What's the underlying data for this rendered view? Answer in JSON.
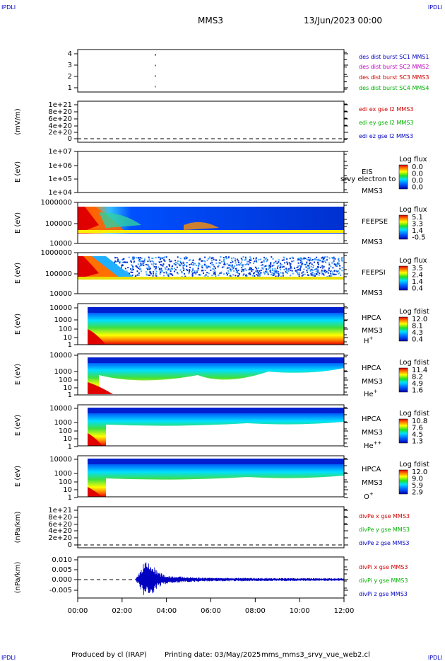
{
  "corners": {
    "tl": "IPDLI",
    "tr": "IPDLI",
    "bl": "IPDLI",
    "br": "IPDLI"
  },
  "header": {
    "spacecraft": "MMS3",
    "date": "13/Jun/2023 00:00"
  },
  "footer": {
    "produced": "Produced by cl (IRAP)",
    "printing": "Printing date: 03/May/2025",
    "file": "mms_mms3_srvy_vue_web2.cl"
  },
  "time_axis": {
    "ticks": [
      "00:00",
      "02:00",
      "04:00",
      "06:00",
      "08:00",
      "10:00",
      "12:00"
    ],
    "range_hours": [
      0,
      12
    ]
  },
  "panels": [
    {
      "id": "burst",
      "ylabel": "",
      "yticks": [
        "4",
        "3",
        "2",
        "1"
      ],
      "labels": [
        {
          "text": "des dist burst SC1 MMS1",
          "color": "#0000c0"
        },
        {
          "text": "des dist burst SC2 MMS2",
          "color": "#c000c0"
        },
        {
          "text": "des dist burst SC3 MMS3",
          "color": "#d00000"
        },
        {
          "text": "des dist burst SC4 MMS4",
          "color": "#00b000"
        }
      ]
    },
    {
      "id": "edi",
      "ylabel": "(mV/m)",
      "yticks": [
        "1e+21",
        "8e+20",
        "6e+20",
        "4e+20",
        "2e+20",
        "0"
      ],
      "labels": [
        {
          "text": "edi ex gse l2 MMS3",
          "color": "#d00000"
        },
        {
          "text": "edi ey gse l2 MMS3",
          "color": "#00b000"
        },
        {
          "text": "edi ez gse l2 MMS3",
          "color": "#0000c0"
        }
      ]
    },
    {
      "id": "eis",
      "ylabel": "E (eV)",
      "yticks": [
        "1e+07",
        "1e+06",
        "1e+05",
        "1e+04"
      ],
      "labels": [
        {
          "text": "EIS",
          "color": "#000"
        },
        {
          "text": "MMS3",
          "color": "#000"
        }
      ],
      "overlay": "srvy electron to",
      "colorbar": {
        "title": "Log flux",
        "ticks": [
          "0.0",
          "0.0",
          "0.0",
          "0.0"
        ]
      }
    },
    {
      "id": "feepse",
      "ylabel": "E (eV)",
      "yticks": [
        "1000000",
        "100000",
        "10000"
      ],
      "labels": [
        {
          "text": "FEEPSE",
          "color": "#000"
        },
        {
          "text": "MMS3",
          "color": "#000"
        }
      ],
      "colorbar": {
        "title": "Log flux",
        "ticks": [
          "5.1",
          "3.3",
          "1.4",
          "-0.5"
        ]
      }
    },
    {
      "id": "feepsi",
      "ylabel": "E (eV)",
      "yticks": [
        "1000000",
        "100000",
        "10000"
      ],
      "labels": [
        {
          "text": "FEEPSI",
          "color": "#000"
        },
        {
          "text": "MMS3",
          "color": "#000"
        }
      ],
      "colorbar": {
        "title": "Log flux",
        "ticks": [
          "3.5",
          "2.4",
          "1.4",
          "0.4"
        ]
      }
    },
    {
      "id": "hpca_h",
      "ylabel": "E (eV)",
      "yticks": [
        "10000",
        "1000",
        "100",
        "10",
        "1"
      ],
      "labels": [
        {
          "text": "HPCA",
          "color": "#000"
        },
        {
          "text": "MMS3",
          "color": "#000"
        }
      ],
      "species": "H",
      "charge": "+",
      "colorbar": {
        "title": "Log fdist",
        "ticks": [
          "12.0",
          "8.1",
          "4.3",
          "0.4"
        ]
      }
    },
    {
      "id": "hpca_he",
      "ylabel": "E (eV)",
      "yticks": [
        "10000",
        "1000",
        "100",
        "10",
        "1"
      ],
      "labels": [
        {
          "text": "HPCA",
          "color": "#000"
        },
        {
          "text": "MMS3",
          "color": "#000"
        }
      ],
      "species": "He",
      "charge": "+",
      "colorbar": {
        "title": "Log fdist",
        "ticks": [
          "11.4",
          "8.2",
          "4.9",
          "1.6"
        ]
      }
    },
    {
      "id": "hpca_he2",
      "ylabel": "E (eV)",
      "yticks": [
        "10000",
        "1000",
        "100",
        "10",
        "1"
      ],
      "labels": [
        {
          "text": "HPCA",
          "color": "#000"
        },
        {
          "text": "MMS3",
          "color": "#000"
        }
      ],
      "species": "He",
      "charge": "++",
      "colorbar": {
        "title": "Log fdist",
        "ticks": [
          "10.8",
          "7.6",
          "4.5",
          "1.3"
        ]
      }
    },
    {
      "id": "hpca_o",
      "ylabel": "E (eV)",
      "yticks": [
        "10000",
        "1000",
        "100",
        "10",
        "1"
      ],
      "labels": [
        {
          "text": "HPCA",
          "color": "#000"
        },
        {
          "text": "MMS3",
          "color": "#000"
        }
      ],
      "species": "O",
      "charge": "+",
      "colorbar": {
        "title": "Log fdist",
        "ticks": [
          "12.0",
          "9.0",
          "5.9",
          "2.9"
        ]
      }
    },
    {
      "id": "divpe",
      "ylabel": "(nPa/km)",
      "yticks": [
        "1e+21",
        "8e+20",
        "6e+20",
        "4e+20",
        "2e+20",
        "0"
      ],
      "labels": [
        {
          "text": "divPe x gse MMS3",
          "color": "#d00000"
        },
        {
          "text": "divPe y gse MMS3",
          "color": "#00b000"
        },
        {
          "text": "divPe z gse MMS3",
          "color": "#0000c0"
        }
      ]
    },
    {
      "id": "divpi",
      "ylabel": "(nPa/km)",
      "yticks": [
        "0.010",
        "0.005",
        "0.000",
        "-0.005"
      ],
      "labels": [
        {
          "text": "divPi x gse MMS3",
          "color": "#d00000"
        },
        {
          "text": "divPi y gse MMS3",
          "color": "#00b000"
        },
        {
          "text": "divPi z gse MMS3",
          "color": "#0000c0"
        }
      ]
    }
  ],
  "chart_data": [
    {
      "type": "scatter",
      "panel": "burst",
      "x_unit": "hours",
      "series": [
        {
          "name": "des dist burst SC1 MMS1",
          "color": "#0000c0",
          "x": [
            3.5
          ],
          "y": [
            4
          ]
        },
        {
          "name": "des dist burst SC2 MMS2",
          "color": "#c000c0",
          "x": [
            3.5
          ],
          "y": [
            3
          ]
        },
        {
          "name": "des dist burst SC3 MMS3",
          "color": "#d00000",
          "x": [
            3.5
          ],
          "y": [
            2
          ]
        },
        {
          "name": "des dist burst SC4 MMS4",
          "color": "#00b000",
          "x": [
            3.5
          ],
          "y": [
            1
          ]
        }
      ],
      "ylim": [
        0.5,
        4.5
      ]
    },
    {
      "type": "line",
      "panel": "divpi",
      "x_unit": "hours",
      "ylim": [
        -0.009,
        0.011
      ],
      "envelope": {
        "x": [
          0,
          2.6,
          2.8,
          3.0,
          3.2,
          3.4,
          3.6,
          4.0,
          5.0,
          6.0,
          8.0,
          10.0,
          12.0
        ],
        "amplitude": [
          0,
          0,
          0.004,
          0.009,
          0.008,
          0.007,
          0.004,
          0.002,
          0.0012,
          0.0009,
          0.0008,
          0.0007,
          0.0006
        ]
      }
    }
  ]
}
